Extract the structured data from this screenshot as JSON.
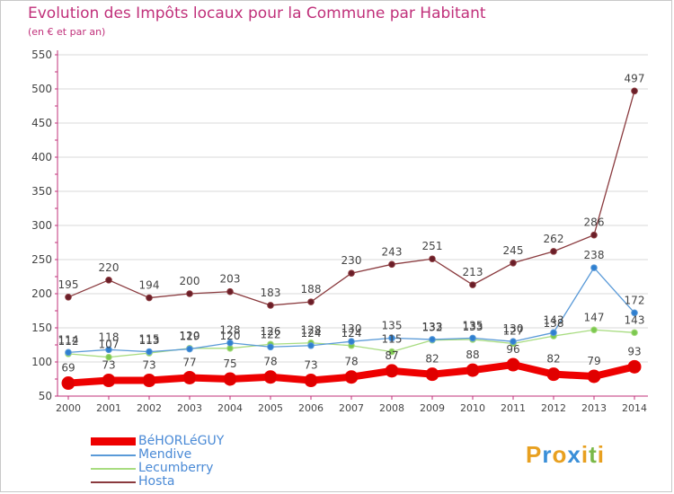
{
  "page": {
    "title": "Evolution des Impôts locaux pour la Commune par Habitant",
    "subtitle": "(en € et par an)"
  },
  "colors": {
    "title": "#c0307a",
    "axis": "#c0307a",
    "grid": "#d9d9d9",
    "label": "#444444",
    "legend_text": "#4a8ad6"
  },
  "logo": {
    "text": "Proxiti",
    "letters": [
      "P",
      "r",
      "o",
      "x",
      "i",
      "t",
      "i"
    ],
    "colors": [
      "#e8a020",
      "#3a8fd8",
      "#e8a020",
      "#3a8fd8",
      "#e8a020",
      "#7ab848",
      "#e8a020"
    ]
  },
  "chart_data": {
    "type": "line",
    "title": "Evolution des Impôts locaux pour la Commune par Habitant",
    "subtitle": "(en € et par an)",
    "x": [
      2000,
      2001,
      2002,
      2003,
      2004,
      2005,
      2006,
      2007,
      2008,
      2009,
      2010,
      2011,
      2012,
      2013,
      2014
    ],
    "ylim": [
      50,
      550
    ],
    "yticks": [
      50,
      100,
      150,
      200,
      250,
      300,
      350,
      400,
      450,
      500,
      550
    ],
    "xlabel": "",
    "ylabel": "",
    "legend_position": "bottom-left",
    "series": [
      {
        "name": "BéHORLéGUY",
        "color": "#ee0000",
        "marker": "#e00000",
        "width": 8,
        "dot": 7,
        "values": [
          69,
          73,
          73,
          77,
          75,
          78,
          73,
          78,
          87,
          82,
          88,
          96,
          82,
          79,
          93
        ],
        "labels": [
          "69",
          "73",
          "73",
          "77",
          "75",
          "78",
          "73",
          "78",
          "87",
          "82",
          "88",
          "96",
          "82",
          "79",
          "93"
        ]
      },
      {
        "name": "Mendive",
        "color": "#5a9ad8",
        "marker": "#2f7fd0",
        "width": 1.3,
        "dot": 3.3,
        "values": [
          114,
          118,
          115,
          119,
          128,
          122,
          124,
          130,
          135,
          133,
          135,
          130,
          143,
          238,
          172
        ],
        "labels": [
          "114",
          "118",
          "115",
          "119",
          "128",
          "122",
          "124",
          "130",
          "135",
          "133",
          "135",
          "130",
          "143",
          "238",
          "172"
        ]
      },
      {
        "name": "Lecumberry",
        "color": "#a8dc80",
        "marker": "#7cc850",
        "width": 1.3,
        "dot": 3.3,
        "values": [
          112,
          107,
          113,
          120,
          120,
          126,
          128,
          124,
          115,
          132,
          133,
          127,
          138,
          147,
          143
        ],
        "labels": [
          "112",
          "107",
          "113",
          "120",
          "120",
          "126",
          "128",
          "124",
          "115",
          "132",
          "133",
          "127",
          "138",
          "147",
          "143"
        ]
      },
      {
        "name": "Hosta",
        "color": "#8a3a3e",
        "marker": "#6a1e28",
        "width": 1.3,
        "dot": 3.3,
        "values": [
          195,
          220,
          194,
          200,
          203,
          183,
          188,
          230,
          243,
          251,
          213,
          245,
          262,
          286,
          497
        ],
        "labels": [
          "195",
          "220",
          "194",
          "200",
          "203",
          "183",
          "188",
          "230",
          "243",
          "251",
          "213",
          "245",
          "262",
          "286",
          "497"
        ]
      }
    ]
  }
}
